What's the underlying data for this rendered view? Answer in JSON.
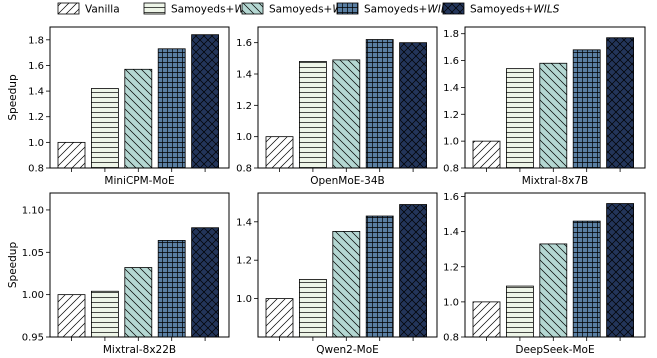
{
  "legend": {
    "placement": "top",
    "entries": [
      {
        "prefix": "Vanilla",
        "suffix": "",
        "pattern": "diag",
        "color": "#ffffff"
      },
      {
        "prefix": "Samoyeds+",
        "suffix": "W",
        "pattern": "hlines",
        "color": "#eef5e8"
      },
      {
        "prefix": "Samoyeds+",
        "suffix": "WI",
        "pattern": "backdiag",
        "color": "#b4d7d2"
      },
      {
        "prefix": "Samoyeds+",
        "suffix": "WIL",
        "pattern": "grid",
        "color": "#5a7fa3"
      },
      {
        "prefix": "Samoyeds+",
        "suffix": "WILS",
        "pattern": "cross",
        "color": "#23355a"
      }
    ]
  },
  "chart_data": [
    {
      "type": "bar",
      "title": "MiniCPM-MoE",
      "ylabel": "Speedup",
      "ylim": [
        0.8,
        1.9
      ],
      "yticks": [
        0.8,
        1.0,
        1.2,
        1.4,
        1.6,
        1.8
      ],
      "tick_decimals": 1,
      "categories": [
        "Vanilla",
        "Samoyeds+W",
        "Samoyeds+WI",
        "Samoyeds+WIL",
        "Samoyeds+WILS"
      ],
      "values": [
        1.0,
        1.42,
        1.57,
        1.73,
        1.84
      ]
    },
    {
      "type": "bar",
      "title": "OpenMoE-34B",
      "ylabel": "",
      "ylim": [
        0.8,
        1.7
      ],
      "yticks": [
        0.8,
        1.0,
        1.2,
        1.4,
        1.6
      ],
      "tick_decimals": 1,
      "categories": [
        "Vanilla",
        "Samoyeds+W",
        "Samoyeds+WI",
        "Samoyeds+WIL",
        "Samoyeds+WILS"
      ],
      "values": [
        1.0,
        1.48,
        1.49,
        1.62,
        1.6
      ]
    },
    {
      "type": "bar",
      "title": "Mixtral-8x7B",
      "ylabel": "",
      "ylim": [
        0.8,
        1.85
      ],
      "yticks": [
        0.8,
        1.0,
        1.2,
        1.4,
        1.6,
        1.8
      ],
      "tick_decimals": 1,
      "categories": [
        "Vanilla",
        "Samoyeds+W",
        "Samoyeds+WI",
        "Samoyeds+WIL",
        "Samoyeds+WILS"
      ],
      "values": [
        1.0,
        1.54,
        1.58,
        1.68,
        1.77
      ]
    },
    {
      "type": "bar",
      "title": "Mixtral-8x22B",
      "ylabel": "Speedup",
      "ylim": [
        0.95,
        1.12
      ],
      "yticks": [
        0.95,
        1.0,
        1.05,
        1.1
      ],
      "tick_decimals": 2,
      "categories": [
        "Vanilla",
        "Samoyeds+W",
        "Samoyeds+WI",
        "Samoyeds+WIL",
        "Samoyeds+WILS"
      ],
      "values": [
        1.0,
        1.004,
        1.032,
        1.064,
        1.079
      ]
    },
    {
      "type": "bar",
      "title": "Qwen2-MoE",
      "ylabel": "",
      "ylim": [
        0.8,
        1.55
      ],
      "yticks": [
        1.0,
        1.2,
        1.4
      ],
      "tick_decimals": 1,
      "categories": [
        "Vanilla",
        "Samoyeds+W",
        "Samoyeds+WI",
        "Samoyeds+WIL",
        "Samoyeds+WILS"
      ],
      "values": [
        1.0,
        1.1,
        1.35,
        1.43,
        1.49
      ]
    },
    {
      "type": "bar",
      "title": "DeepSeek-MoE",
      "ylabel": "",
      "ylim": [
        0.8,
        1.62
      ],
      "yticks": [
        0.8,
        1.0,
        1.2,
        1.4,
        1.6
      ],
      "tick_decimals": 1,
      "categories": [
        "Vanilla",
        "Samoyeds+W",
        "Samoyeds+WI",
        "Samoyeds+WIL",
        "Samoyeds+WILS"
      ],
      "values": [
        1.0,
        1.09,
        1.33,
        1.46,
        1.56
      ]
    }
  ]
}
